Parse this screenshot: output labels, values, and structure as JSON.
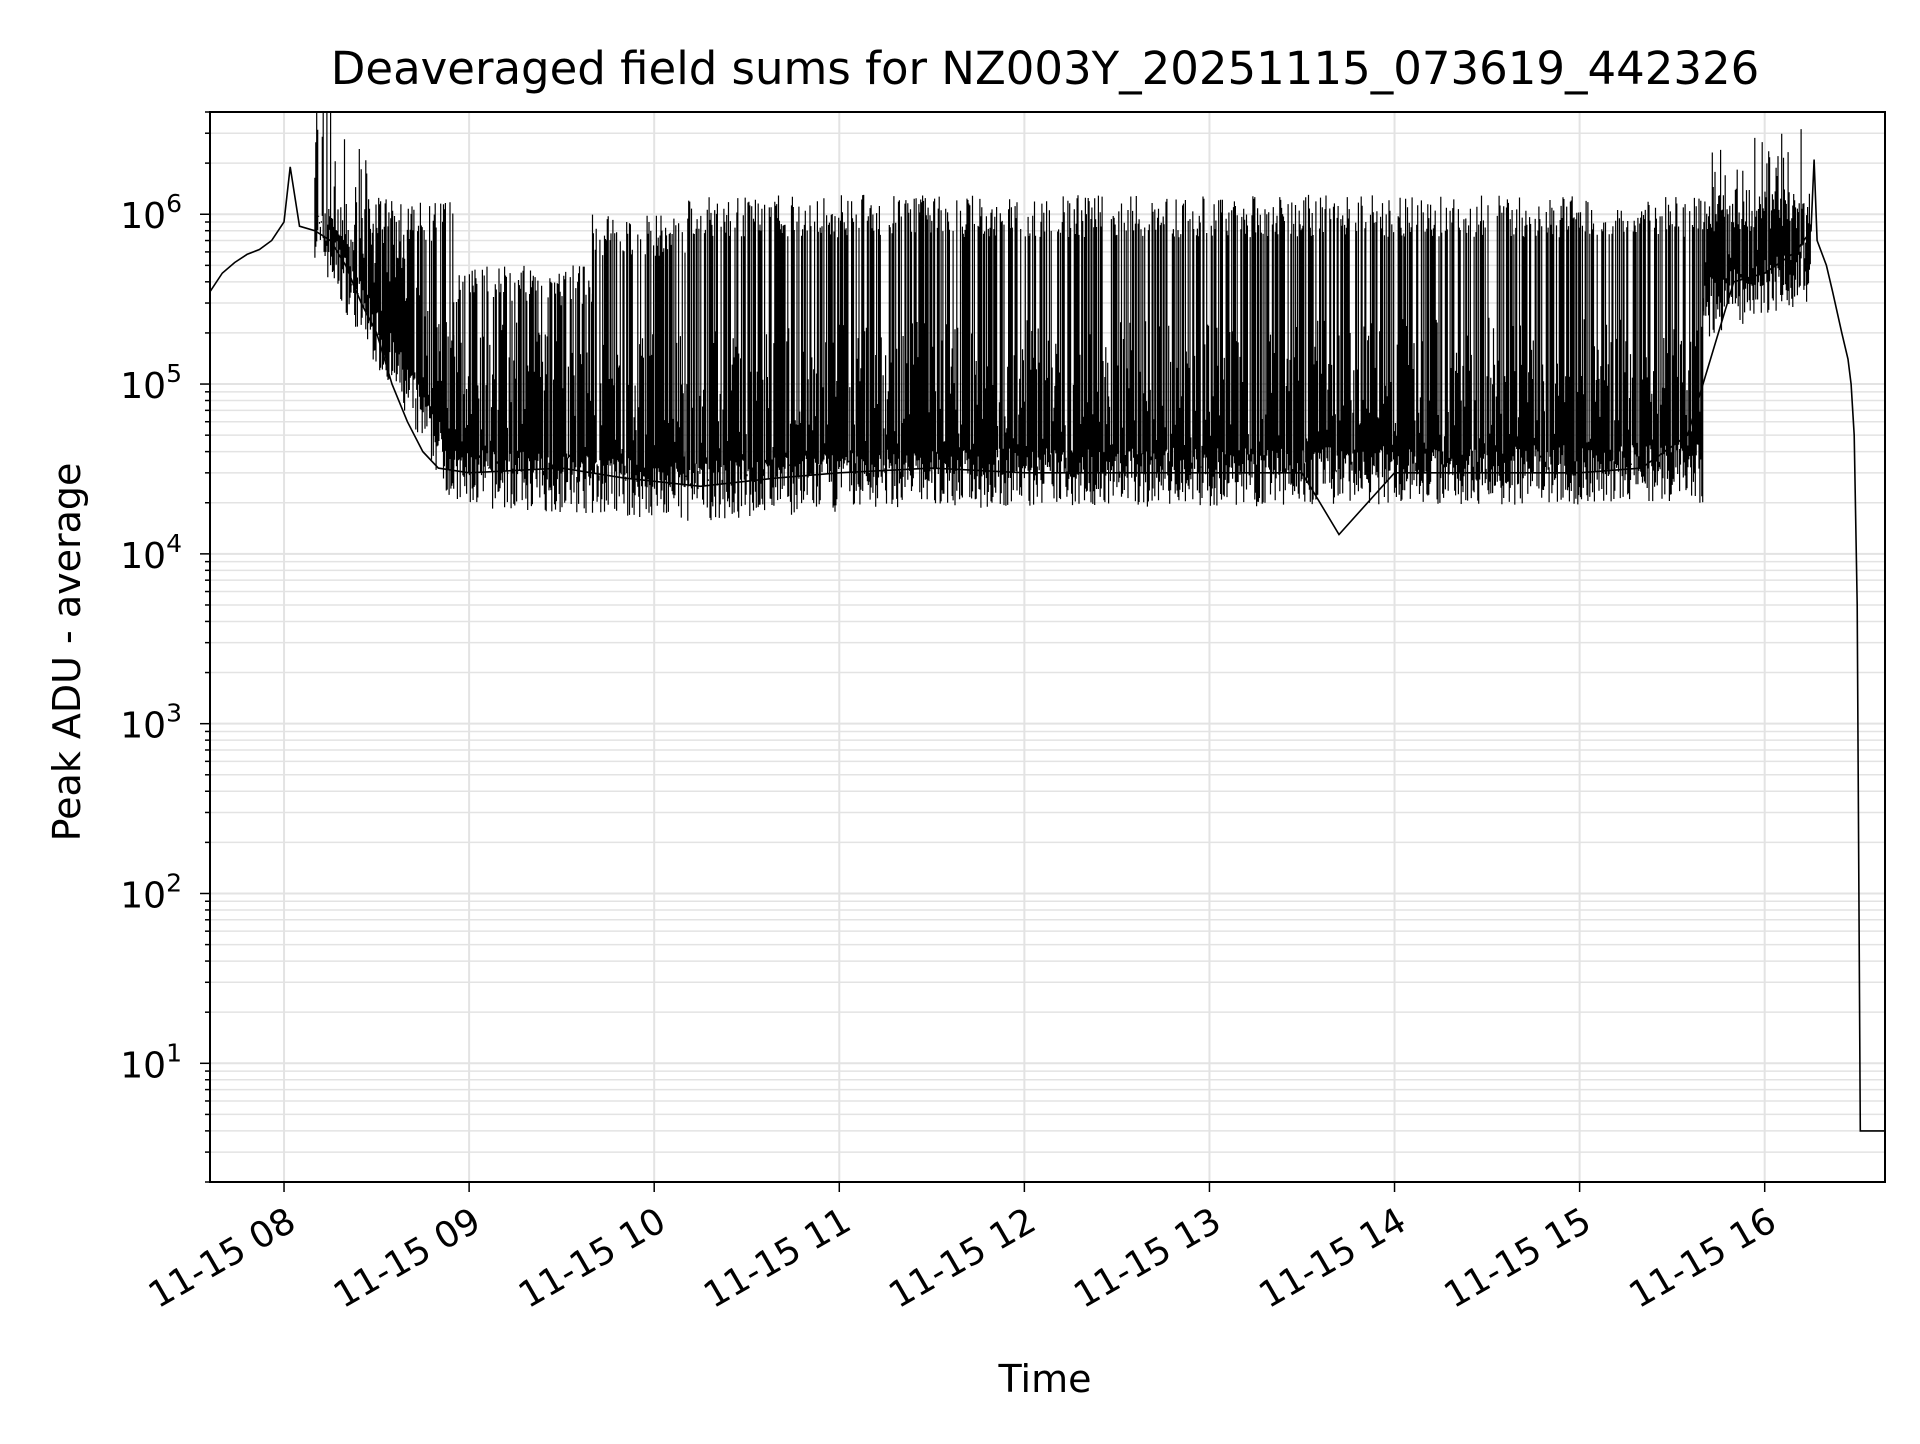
{
  "chart_data": {
    "type": "line",
    "title": "Deaveraged field sums for NZ003Y_20251115_073619_442326",
    "xlabel": "Time",
    "ylabel": "Peak ADU - average",
    "y_scale": "log",
    "ylim": [
      2,
      4000000
    ],
    "xlim": [
      "2025-11-15 07:36",
      "2025-11-15 16:39"
    ],
    "grid": true,
    "legend": "none",
    "line_color": "#000000",
    "grid_color": "#e3e3e3",
    "x_ticks": [
      {
        "label": "11-15 08",
        "time": "2025-11-15 08:00"
      },
      {
        "label": "11-15 09",
        "time": "2025-11-15 09:00"
      },
      {
        "label": "11-15 10",
        "time": "2025-11-15 10:00"
      },
      {
        "label": "11-15 11",
        "time": "2025-11-15 11:00"
      },
      {
        "label": "11-15 12",
        "time": "2025-11-15 12:00"
      },
      {
        "label": "11-15 13",
        "time": "2025-11-15 13:00"
      },
      {
        "label": "11-15 14",
        "time": "2025-11-15 14:00"
      },
      {
        "label": "11-15 15",
        "time": "2025-11-15 15:00"
      },
      {
        "label": "11-15 16",
        "time": "2025-11-15 16:00"
      }
    ],
    "y_ticks": [
      {
        "base": "10",
        "exp": "1",
        "value": 10
      },
      {
        "base": "10",
        "exp": "2",
        "value": 100
      },
      {
        "base": "10",
        "exp": "3",
        "value": 1000
      },
      {
        "base": "10",
        "exp": "4",
        "value": 10000
      },
      {
        "base": "10",
        "exp": "5",
        "value": 100000
      },
      {
        "base": "10",
        "exp": "6",
        "value": 1000000
      }
    ],
    "series": [
      {
        "points": [
          [
            "2025-11-15 07:36",
            350000
          ],
          [
            "2025-11-15 07:40",
            450000
          ],
          [
            "2025-11-15 07:44",
            520000
          ],
          [
            "2025-11-15 07:48",
            580000
          ],
          [
            "2025-11-15 07:52",
            620000
          ],
          [
            "2025-11-15 07:56",
            700000
          ],
          [
            "2025-11-15 08:00",
            900000
          ],
          [
            "2025-11-15 08:02",
            1900000
          ],
          [
            "2025-11-15 08:05",
            850000
          ],
          [
            "2025-11-15 08:10",
            800000
          ],
          [
            "2025-11-15 08:15",
            700000
          ],
          [
            "2025-11-15 08:20",
            500000
          ],
          [
            "2025-11-15 08:25",
            300000
          ],
          [
            "2025-11-15 08:30",
            200000
          ],
          [
            "2025-11-15 08:35",
            100000
          ],
          [
            "2025-11-15 08:40",
            60000
          ],
          [
            "2025-11-15 08:45",
            40000
          ],
          [
            "2025-11-15 08:50",
            32000
          ],
          [
            "2025-11-15 09:00",
            30000
          ],
          [
            "2025-11-15 09:30",
            32000
          ],
          [
            "2025-11-15 09:50",
            28000
          ],
          [
            "2025-11-15 10:15",
            25000
          ],
          [
            "2025-11-15 10:40",
            28000
          ],
          [
            "2025-11-15 11:00",
            30000
          ],
          [
            "2025-11-15 11:30",
            32000
          ],
          [
            "2025-11-15 12:00",
            30000
          ],
          [
            "2025-11-15 12:30",
            30000
          ],
          [
            "2025-11-15 13:00",
            30000
          ],
          [
            "2025-11-15 13:30",
            30000
          ],
          [
            "2025-11-15 13:42",
            13000
          ],
          [
            "2025-11-15 14:00",
            30000
          ],
          [
            "2025-11-15 14:30",
            30000
          ],
          [
            "2025-11-15 15:00",
            30000
          ],
          [
            "2025-11-15 15:20",
            32000
          ],
          [
            "2025-11-15 15:35",
            50000
          ],
          [
            "2025-11-15 15:45",
            200000
          ],
          [
            "2025-11-15 15:50",
            400000
          ],
          [
            "2025-11-15 16:00",
            450000
          ],
          [
            "2025-11-15 16:10",
            600000
          ],
          [
            "2025-11-15 16:15",
            800000
          ],
          [
            "2025-11-15 16:16",
            2100000
          ],
          [
            "2025-11-15 16:17",
            700000
          ],
          [
            "2025-11-15 16:20",
            500000
          ],
          [
            "2025-11-15 16:22",
            350000
          ],
          [
            "2025-11-15 16:25",
            200000
          ],
          [
            "2025-11-15 16:27",
            140000
          ],
          [
            "2025-11-15 16:28",
            100000
          ],
          [
            "2025-11-15 16:29",
            50000
          ],
          [
            "2025-11-15 16:30",
            5000
          ],
          [
            "2025-11-15 16:31",
            4
          ],
          [
            "2025-11-15 16:39",
            4
          ]
        ],
        "band": {
          "note_free": true,
          "segments": [
            {
              "from": "2025-11-15 08:10",
              "to": "2025-11-15 08:55",
              "high": 1200000,
              "low_start": 900000,
              "low_end": 32000
            },
            {
              "from": "2025-11-15 08:55",
              "to": "2025-11-15 09:40",
              "high": 500000,
              "low_start": 30000,
              "low_end": 28000
            },
            {
              "from": "2025-11-15 09:40",
              "to": "2025-11-15 10:10",
              "high": 1000000,
              "low_start": 28000,
              "low_end": 25000
            },
            {
              "from": "2025-11-15 10:10",
              "to": "2025-11-15 11:15",
              "high": 1300000,
              "low_start": 25000,
              "low_end": 30000
            },
            {
              "from": "2025-11-15 11:15",
              "to": "2025-11-15 15:40",
              "high": 1300000,
              "low_start": 30000,
              "low_end": 32000
            },
            {
              "from": "2025-11-15 15:40",
              "to": "2025-11-15 16:15",
              "high": 1400000,
              "low_start": 300000,
              "low_end": 500000
            }
          ]
        }
      }
    ]
  }
}
